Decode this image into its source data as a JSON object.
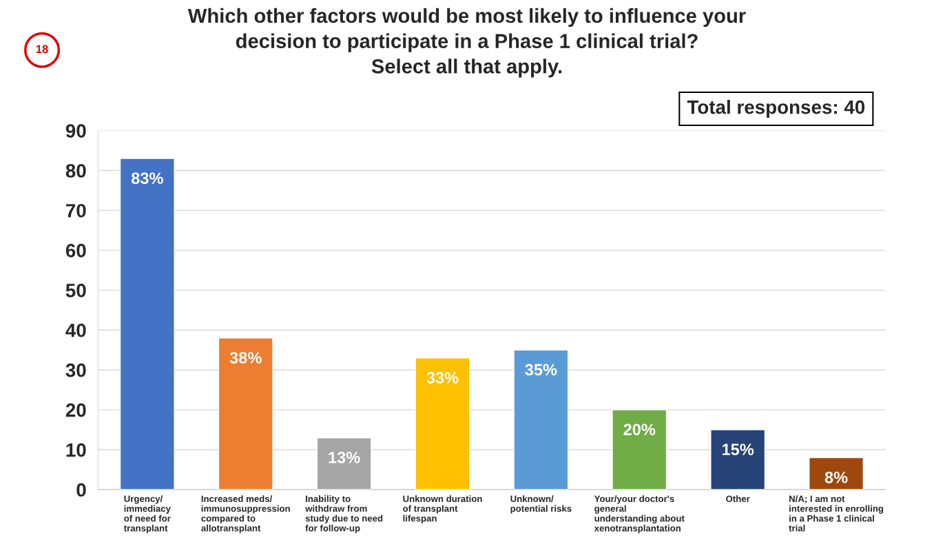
{
  "chart_data": {
    "type": "bar",
    "title": "Which other factors would be most likely to influence your\ndecision to participate in a Phase 1 clinical trial?\nSelect all that apply.",
    "categories": [
      "Urgency/\nimmediacy\nof need for\ntransplant",
      "Increased meds/\nimmunosuppression\ncompared to\nallotransplant",
      "Inability to\nwithdraw from\nstudy due to need\nfor follow-up",
      "Unknown duration\nof transplant\nlifespan",
      "Unknown/\npotential risks",
      "Your/your doctor's\ngeneral\nunderstanding about\nxenotransplantation",
      "Other",
      "N/A; I am not\ninterested in enrolling\nin a Phase 1 clinical\ntrial"
    ],
    "values": [
      83,
      38,
      13,
      33,
      35,
      20,
      15,
      8
    ],
    "colors": [
      "#4472c4",
      "#ed7d31",
      "#a5a5a5",
      "#ffc000",
      "#5b9bd5",
      "#70ad47",
      "#264478",
      "#9e480e"
    ],
    "value_labels": [
      "83%",
      "38%",
      "13%",
      "33%",
      "35%",
      "20%",
      "15%",
      "8%"
    ],
    "ylim": [
      0,
      90
    ],
    "yticks": [
      0,
      10,
      20,
      30,
      40,
      50,
      60,
      70,
      80,
      90
    ],
    "grid": "y",
    "legend": false,
    "annotations": [
      "18",
      "Total responses: 40"
    ]
  }
}
